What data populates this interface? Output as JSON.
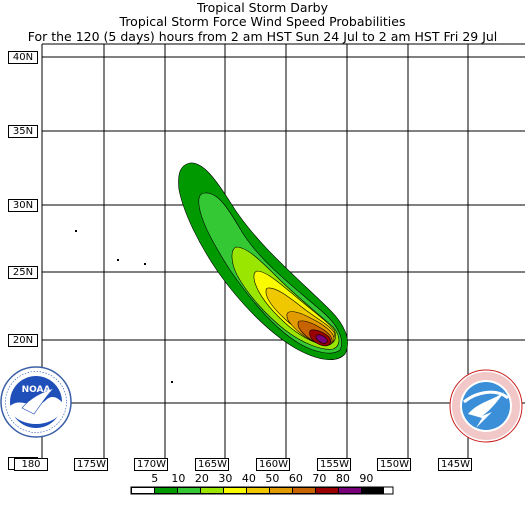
{
  "header": {
    "line1": "Tropical Storm Darby",
    "line2": "Tropical Storm Force Wind Speed Probabilities",
    "line3": "For the 120 (5 days) hours from 2 am HST Sun 24 Jul to 2 am HST Fri 29 Jul"
  },
  "lat_labels": [
    "40N",
    "35N",
    "30N",
    "25N",
    "20N",
    "15N"
  ],
  "lon_labels": [
    "180",
    "175W",
    "170W",
    "165W",
    "160W",
    "155W",
    "150W",
    "145W"
  ],
  "legend": {
    "values": [
      "5",
      "10",
      "20",
      "30",
      "40",
      "50",
      "60",
      "70",
      "80",
      "90"
    ],
    "colors": [
      "#ffffff",
      "#009a00",
      "#34c834",
      "#9ae600",
      "#fafa00",
      "#f0c800",
      "#e19a00",
      "#c86400",
      "#9b0000",
      "#780078",
      "#000000"
    ]
  },
  "logos": {
    "noaa_text": "NOAA",
    "noaa_ring": "NATIONAL OCEANIC AND ATMOSPHERIC ADMINISTRATION · U.S. DEPARTMENT OF COMMERCE",
    "nws_ring": "NATIONAL WEATHER SERVICE"
  },
  "colors": {
    "grid": "#000000",
    "background": "#ffffff"
  }
}
